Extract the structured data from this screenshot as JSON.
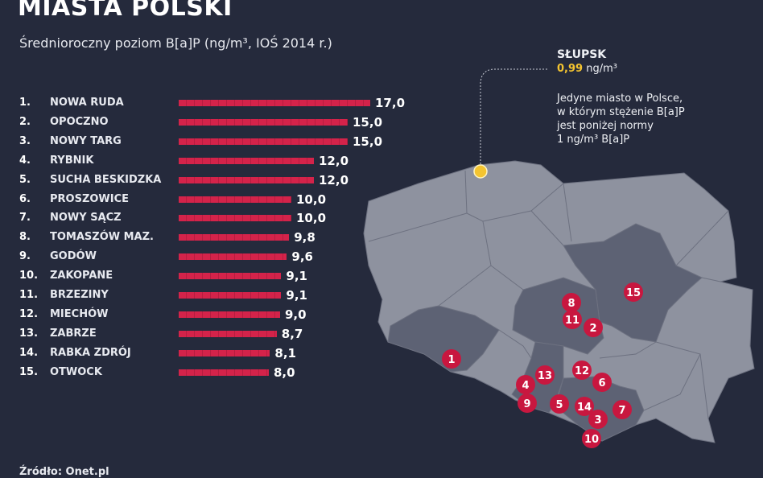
{
  "header": {
    "title": "MIASTA POLSKI",
    "subtitle": "Średnioroczny poziom B[a]P (ng/m³, IOŚ 2014 r.)"
  },
  "callout": {
    "city": "SŁUPSK",
    "value": "0,99",
    "unit": "ng/m³",
    "description_lines": [
      "Jedyne miasto w Polsce,",
      "w którym stężenie B[a]P",
      "jest poniżej normy",
      "1 ng/m³ B[a]P"
    ]
  },
  "source": "Źródło: Onet.pl",
  "colors": {
    "background": "#252a3c",
    "bar": "#d4234a",
    "marker": "#c8173f",
    "highlight": "#f4c430",
    "map_light": "#8e929f",
    "map_dark": "#5d6274"
  },
  "chart_data": {
    "type": "bar",
    "orientation": "horizontal",
    "title": "MIASTA POLSKI",
    "subtitle": "Średnioroczny poziom B[a]P (ng/m³, IOŚ 2014 r.)",
    "ranks": [
      "1.",
      "2.",
      "3.",
      "4.",
      "5.",
      "6.",
      "7.",
      "8.",
      "9.",
      "10.",
      "11.",
      "12.",
      "13.",
      "14.",
      "15."
    ],
    "categories": [
      "NOWA RUDA",
      "OPOCZNO",
      "NOWY TARG",
      "RYBNIK",
      "SUCHA BESKIDZKA",
      "PROSZOWICE",
      "NOWY SĄCZ",
      "TOMASZÓW MAZ.",
      "GODÓW",
      "ZAKOPANE",
      "BRZEZINY",
      "MIECHÓW",
      "ZABRZE",
      "RABKA ZDRÓJ",
      "OTWOCK"
    ],
    "values": [
      17.0,
      15.0,
      15.0,
      12.0,
      12.0,
      10.0,
      10.0,
      9.8,
      9.6,
      9.1,
      9.1,
      9.0,
      8.7,
      8.1,
      8.0
    ],
    "value_labels": [
      "17,0",
      "15,0",
      "15,0",
      "12,0",
      "12,0",
      "10,0",
      "10,0",
      "9,8",
      "9,6",
      "9,1",
      "9,1",
      "9,0",
      "8,7",
      "8,1",
      "8,0"
    ],
    "map_markers": [
      "1",
      "2",
      "3",
      "4",
      "5",
      "6",
      "7",
      "8",
      "9",
      "10",
      "11",
      "12",
      "13",
      "14",
      "15"
    ],
    "grid": false,
    "legend": "none"
  }
}
